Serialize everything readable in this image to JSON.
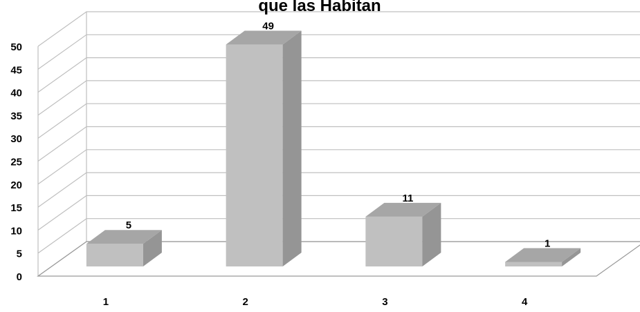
{
  "chart_data": {
    "type": "bar",
    "title": "que las Habitan",
    "categories": [
      "1",
      "2",
      "3",
      "4"
    ],
    "values": [
      5,
      49,
      11,
      1
    ],
    "xlabel": "",
    "ylabel": "",
    "ylim": [
      0,
      50
    ],
    "yticks": [
      "0",
      "5",
      "10",
      "15",
      "20",
      "25",
      "30",
      "35",
      "40",
      "45",
      "50"
    ],
    "grid": true,
    "three_d": true,
    "legend": "none",
    "colors": {
      "bar_front": "#c0c0c0",
      "bar_side": "#959595",
      "bar_top": "#a6a6a6",
      "grid": "#bfbfbf",
      "floor": "#999999"
    }
  }
}
